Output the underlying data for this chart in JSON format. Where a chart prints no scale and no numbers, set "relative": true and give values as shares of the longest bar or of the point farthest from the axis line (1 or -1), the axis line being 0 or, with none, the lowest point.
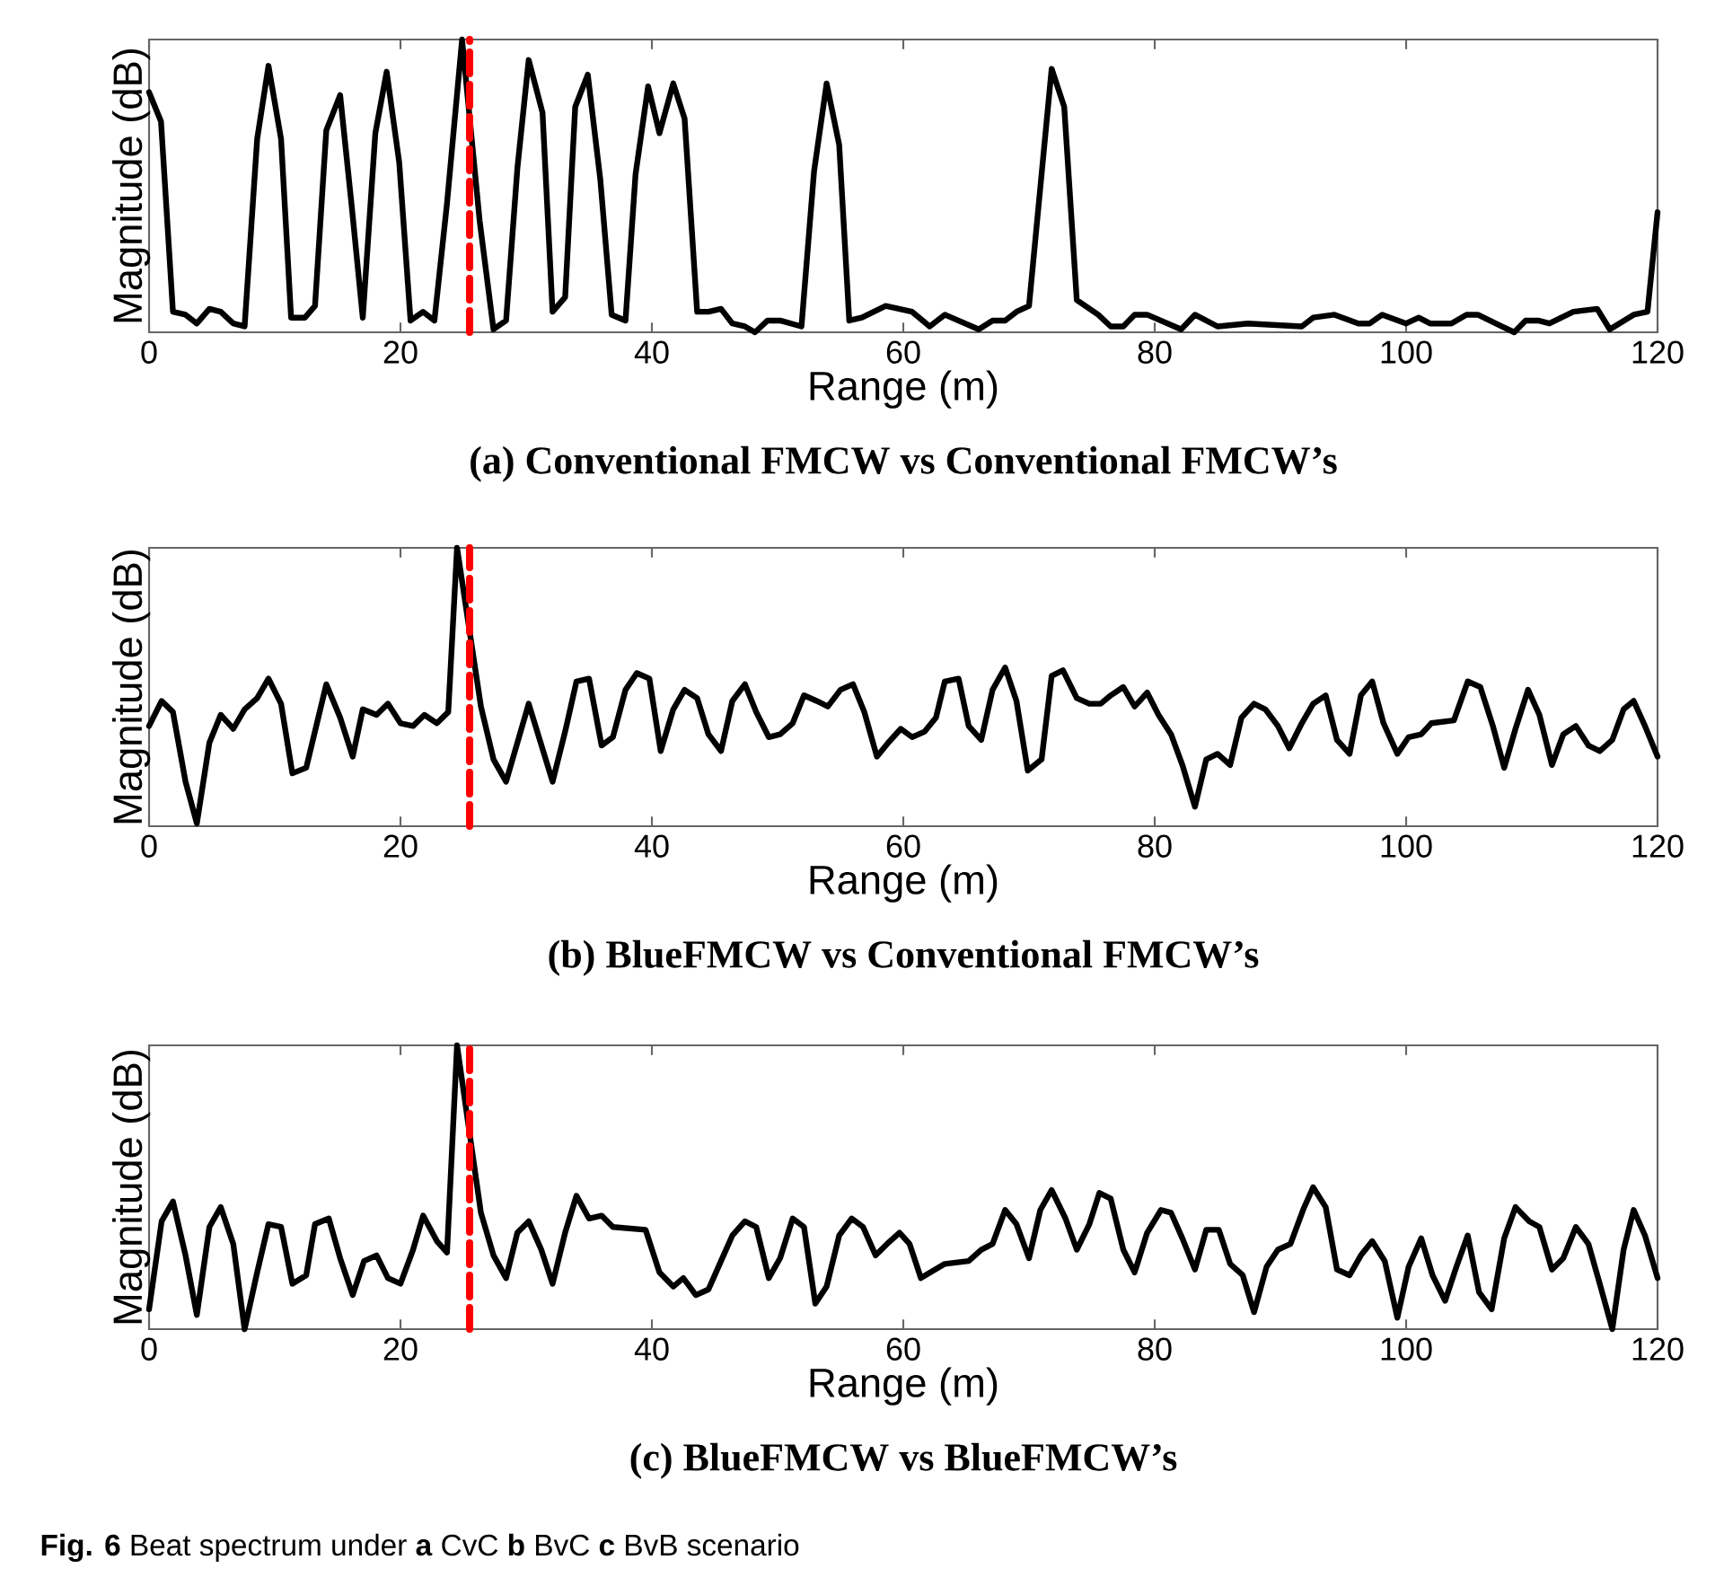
{
  "chart_data": [
    {
      "type": "line",
      "title": "(a) Conventional FMCW vs Conventional FMCW’s",
      "xlabel": "Range (m)",
      "ylabel": "Magnitude (dB)",
      "relative": true,
      "tick_labels": "x",
      "xlim": [
        0,
        120
      ],
      "xticks": [
        0,
        20,
        40,
        60,
        80,
        100,
        120
      ],
      "line_style": "solid",
      "series": [
        {
          "color": "#000000",
          "x": [
            0,
            0.95,
            1.9,
            2.9,
            3.8,
            4.8,
            5.7,
            6.7,
            7.6,
            8.6,
            9.5,
            10.5,
            11.3,
            12.4,
            13.2,
            14.1,
            15.2,
            16.1,
            17.0,
            18.0,
            18.9,
            19.9,
            20.8,
            21.8,
            22.7,
            23.7,
            24.9,
            26.3,
            27.4,
            28.4,
            29.3,
            30.2,
            31.3,
            32.1,
            33.1,
            33.9,
            34.9,
            35.9,
            36.8,
            37.9,
            38.7,
            39.7,
            40.6,
            41.7,
            42.6,
            43.6,
            44.5,
            45.5,
            46.4,
            47.4,
            48.2,
            49.2,
            50.2,
            51.9,
            52.9,
            53.9,
            54.9,
            55.7,
            56.7,
            58.6,
            60.7,
            62.1,
            63.3,
            66.0,
            67.1,
            68.1,
            69.0,
            70.0,
            71.8,
            72.8,
            73.8,
            75.5,
            76.5,
            77.5,
            78.4,
            79.4,
            82.1,
            83.2,
            85.0,
            87.4,
            91.7,
            92.6,
            94.3,
            96.2,
            97.1,
            98.1,
            100.0,
            101.0,
            101.9,
            103.6,
            104.8,
            105.7,
            107.6,
            108.6,
            109.5,
            110.5,
            111.4,
            113.3,
            115.2,
            116.2,
            118.1,
            119.2,
            120
          ],
          "values": [
            0.82,
            0.72,
            0.07,
            0.06,
            0.03,
            0.08,
            0.07,
            0.03,
            0.02,
            0.66,
            0.91,
            0.66,
            0.05,
            0.05,
            0.09,
            0.69,
            0.81,
            0.44,
            0.05,
            0.68,
            0.89,
            0.58,
            0.04,
            0.07,
            0.04,
            0.44,
            1.0,
            0.38,
            0.01,
            0.04,
            0.56,
            0.93,
            0.75,
            0.07,
            0.12,
            0.77,
            0.88,
            0.52,
            0.06,
            0.04,
            0.54,
            0.84,
            0.68,
            0.85,
            0.73,
            0.07,
            0.07,
            0.08,
            0.03,
            0.02,
            0.0,
            0.04,
            0.04,
            0.02,
            0.55,
            0.85,
            0.64,
            0.04,
            0.05,
            0.09,
            0.07,
            0.02,
            0.06,
            0.01,
            0.04,
            0.04,
            0.07,
            0.09,
            0.9,
            0.77,
            0.11,
            0.06,
            0.02,
            0.02,
            0.06,
            0.06,
            0.01,
            0.06,
            0.02,
            0.03,
            0.02,
            0.05,
            0.06,
            0.03,
            0.03,
            0.06,
            0.03,
            0.05,
            0.03,
            0.03,
            0.06,
            0.06,
            0.02,
            0.0,
            0.04,
            0.04,
            0.03,
            0.07,
            0.08,
            0.01,
            0.06,
            0.07,
            0.41
          ]
        }
      ],
      "ref_lines": [
        {
          "axis": "x",
          "value": 25.5,
          "color": "#ff0000",
          "line_style": "dashed"
        }
      ]
    },
    {
      "type": "line",
      "title": "(b) BlueFMCW vs Conventional FMCW’s",
      "xlabel": "Range (m)",
      "ylabel": "Magnitude (dB)",
      "relative": true,
      "tick_labels": "x",
      "xlim": [
        0,
        120
      ],
      "xticks": [
        0,
        20,
        40,
        60,
        80,
        100,
        120
      ],
      "line_style": "solid",
      "series": [
        {
          "color": "#000000",
          "x": [
            0,
            1.0,
            1.9,
            2.9,
            3.8,
            4.8,
            5.7,
            6.7,
            7.6,
            8.6,
            9.5,
            10.5,
            11.4,
            12.5,
            13.3,
            14.1,
            15.2,
            16.2,
            17.0,
            18.1,
            19.0,
            20.0,
            21.0,
            21.9,
            22.9,
            23.8,
            24.5,
            26.4,
            27.4,
            28.4,
            30.2,
            32.1,
            33.1,
            34.0,
            35.0,
            36.0,
            36.9,
            37.9,
            38.8,
            39.8,
            40.7,
            41.7,
            42.6,
            43.6,
            44.5,
            45.5,
            46.4,
            47.4,
            48.3,
            49.3,
            50.2,
            51.2,
            52.1,
            53.1,
            54.0,
            55.0,
            56.0,
            56.9,
            57.9,
            58.8,
            59.8,
            60.7,
            61.7,
            62.6,
            63.3,
            64.4,
            65.2,
            66.2,
            67.1,
            68.1,
            69.0,
            69.9,
            71.0,
            71.8,
            72.7,
            73.8,
            74.8,
            75.7,
            76.5,
            77.5,
            78.4,
            79.4,
            80.3,
            81.3,
            82.2,
            83.2,
            84.1,
            85.0,
            86.0,
            86.9,
            87.9,
            88.8,
            89.8,
            90.7,
            91.7,
            92.6,
            93.6,
            94.5,
            95.5,
            96.4,
            97.3,
            98.2,
            99.3,
            100.2,
            101.2,
            102.0,
            103.8,
            104.9,
            105.9,
            106.9,
            107.8,
            108.7,
            109.7,
            110.6,
            111.6,
            112.5,
            113.5,
            114.5,
            115.4,
            116.4,
            117.3,
            118.1,
            119.0,
            120
          ],
          "values": [
            0.36,
            0.45,
            0.41,
            0.16,
            0.01,
            0.3,
            0.4,
            0.35,
            0.42,
            0.46,
            0.53,
            0.44,
            0.19,
            0.21,
            0.36,
            0.51,
            0.39,
            0.25,
            0.42,
            0.4,
            0.44,
            0.37,
            0.36,
            0.4,
            0.37,
            0.41,
            1.0,
            0.43,
            0.24,
            0.16,
            0.44,
            0.16,
            0.34,
            0.52,
            0.53,
            0.29,
            0.32,
            0.49,
            0.55,
            0.53,
            0.27,
            0.42,
            0.49,
            0.46,
            0.33,
            0.27,
            0.45,
            0.51,
            0.41,
            0.32,
            0.33,
            0.37,
            0.47,
            0.45,
            0.43,
            0.49,
            0.51,
            0.41,
            0.25,
            0.3,
            0.35,
            0.32,
            0.34,
            0.39,
            0.52,
            0.53,
            0.36,
            0.31,
            0.49,
            0.57,
            0.45,
            0.2,
            0.24,
            0.54,
            0.56,
            0.46,
            0.44,
            0.44,
            0.47,
            0.5,
            0.43,
            0.48,
            0.4,
            0.33,
            0.22,
            0.07,
            0.24,
            0.26,
            0.22,
            0.39,
            0.44,
            0.42,
            0.36,
            0.28,
            0.37,
            0.44,
            0.47,
            0.31,
            0.26,
            0.47,
            0.52,
            0.37,
            0.26,
            0.32,
            0.33,
            0.37,
            0.38,
            0.52,
            0.5,
            0.36,
            0.21,
            0.35,
            0.49,
            0.4,
            0.22,
            0.33,
            0.36,
            0.29,
            0.27,
            0.31,
            0.42,
            0.45,
            0.36,
            0.25
          ]
        }
      ],
      "ref_lines": [
        {
          "axis": "x",
          "value": 25.5,
          "color": "#ff0000",
          "line_style": "dashed"
        }
      ]
    },
    {
      "type": "line",
      "title": "(c) BlueFMCW vs BlueFMCW’s",
      "xlabel": "Range (m)",
      "ylabel": "Magnitude (dB)",
      "relative": true,
      "tick_labels": "x",
      "xlim": [
        0,
        120
      ],
      "xticks": [
        0,
        20,
        40,
        60,
        80,
        100,
        120
      ],
      "line_style": "solid",
      "series": [
        {
          "color": "#000000",
          "x": [
            0,
            1.0,
            1.9,
            2.9,
            3.8,
            4.8,
            5.7,
            6.7,
            7.6,
            8.6,
            9.5,
            10.5,
            11.4,
            12.5,
            13.2,
            14.3,
            15.2,
            16.2,
            17.1,
            18.1,
            19.0,
            20.0,
            21.0,
            21.8,
            22.9,
            23.7,
            24.5,
            26.4,
            27.4,
            28.4,
            29.3,
            30.2,
            31.2,
            32.1,
            33.1,
            34.0,
            35.0,
            36.0,
            36.9,
            39.5,
            40.6,
            41.7,
            42.5,
            43.5,
            44.5,
            45.5,
            46.4,
            47.4,
            48.3,
            49.3,
            50.2,
            51.2,
            52.1,
            53.0,
            53.9,
            54.9,
            55.9,
            56.8,
            57.8,
            58.7,
            59.7,
            60.5,
            61.4,
            63.3,
            65.2,
            66.2,
            67.1,
            68.1,
            69.0,
            70.0,
            70.9,
            71.8,
            72.9,
            73.8,
            74.8,
            75.6,
            76.5,
            77.5,
            78.4,
            79.4,
            80.5,
            81.3,
            82.2,
            83.2,
            84.1,
            85.1,
            86.0,
            87.0,
            87.9,
            88.9,
            89.8,
            90.8,
            91.8,
            92.6,
            93.6,
            94.5,
            95.5,
            96.4,
            97.3,
            98.3,
            99.3,
            100.2,
            101.2,
            102.1,
            103.1,
            104.0,
            104.9,
            105.8,
            106.8,
            107.8,
            108.7,
            109.8,
            110.6,
            111.6,
            112.5,
            113.5,
            114.5,
            115.4,
            116.4,
            117.3,
            118.1,
            119.0,
            120
          ],
          "values": [
            0.07,
            0.38,
            0.45,
            0.26,
            0.05,
            0.36,
            0.43,
            0.3,
            0.0,
            0.2,
            0.37,
            0.36,
            0.16,
            0.19,
            0.37,
            0.39,
            0.25,
            0.12,
            0.24,
            0.26,
            0.18,
            0.16,
            0.28,
            0.4,
            0.31,
            0.27,
            1.0,
            0.41,
            0.26,
            0.18,
            0.34,
            0.38,
            0.28,
            0.16,
            0.34,
            0.47,
            0.39,
            0.4,
            0.36,
            0.35,
            0.2,
            0.15,
            0.18,
            0.12,
            0.14,
            0.24,
            0.33,
            0.38,
            0.36,
            0.18,
            0.25,
            0.39,
            0.36,
            0.09,
            0.15,
            0.33,
            0.39,
            0.36,
            0.26,
            0.3,
            0.34,
            0.3,
            0.18,
            0.23,
            0.24,
            0.28,
            0.3,
            0.42,
            0.37,
            0.25,
            0.42,
            0.49,
            0.39,
            0.28,
            0.37,
            0.48,
            0.46,
            0.28,
            0.2,
            0.34,
            0.42,
            0.41,
            0.32,
            0.21,
            0.35,
            0.35,
            0.23,
            0.19,
            0.06,
            0.22,
            0.28,
            0.3,
            0.42,
            0.5,
            0.43,
            0.21,
            0.19,
            0.26,
            0.31,
            0.24,
            0.04,
            0.22,
            0.32,
            0.19,
            0.1,
            0.22,
            0.33,
            0.13,
            0.07,
            0.32,
            0.43,
            0.38,
            0.36,
            0.21,
            0.25,
            0.36,
            0.3,
            0.16,
            0.0,
            0.28,
            0.42,
            0.33,
            0.18
          ]
        }
      ],
      "ref_lines": [
        {
          "axis": "x",
          "value": 25.5,
          "color": "#ff0000",
          "line_style": "dashed"
        }
      ],
      "annotations": [
        "**Fig. 6** Beat spectrum under **a** CvC **b** BvC **c** BvB scenario"
      ]
    }
  ]
}
